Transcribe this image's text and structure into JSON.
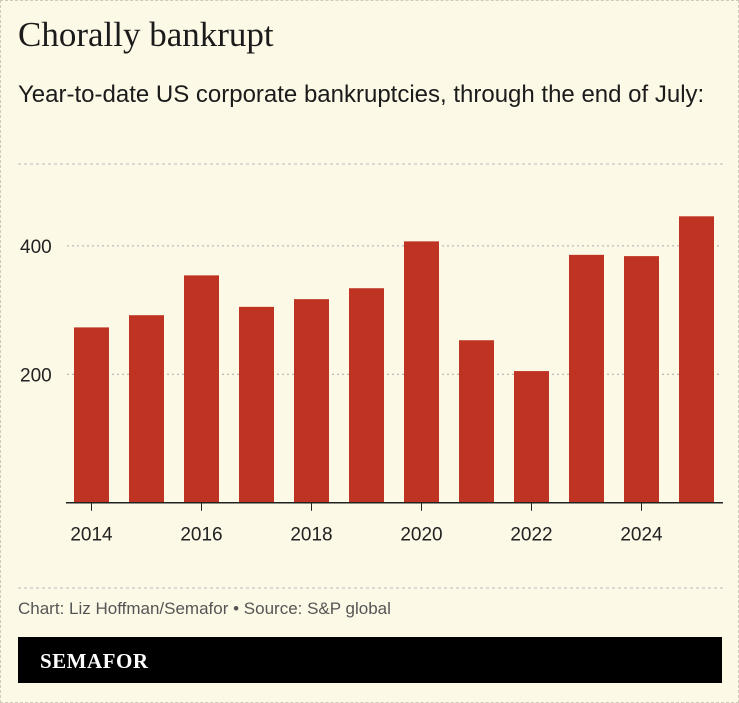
{
  "title": "Chorally bankrupt",
  "subtitle": "Year-to-date US corporate bankruptcies, through the end of July:",
  "footer": "Chart: Liz Hoffman/Semafor • Source: S&P global",
  "brand": "SEMAFOR",
  "chart_data": {
    "type": "bar",
    "categories": [
      "2014",
      "2015",
      "2016",
      "2017",
      "2018",
      "2019",
      "2020",
      "2021",
      "2022",
      "2023",
      "2024",
      "2025"
    ],
    "values": [
      273,
      292,
      354,
      305,
      317,
      334,
      407,
      253,
      205,
      386,
      384,
      446
    ],
    "x_tick_labels": [
      "2014",
      "2016",
      "2018",
      "2020",
      "2022",
      "2024"
    ],
    "y_ticks": [
      200,
      400
    ],
    "ylim": [
      0,
      527
    ],
    "grid": true,
    "bar_color": "#bf3322",
    "title": "",
    "xlabel": "",
    "ylabel": ""
  }
}
